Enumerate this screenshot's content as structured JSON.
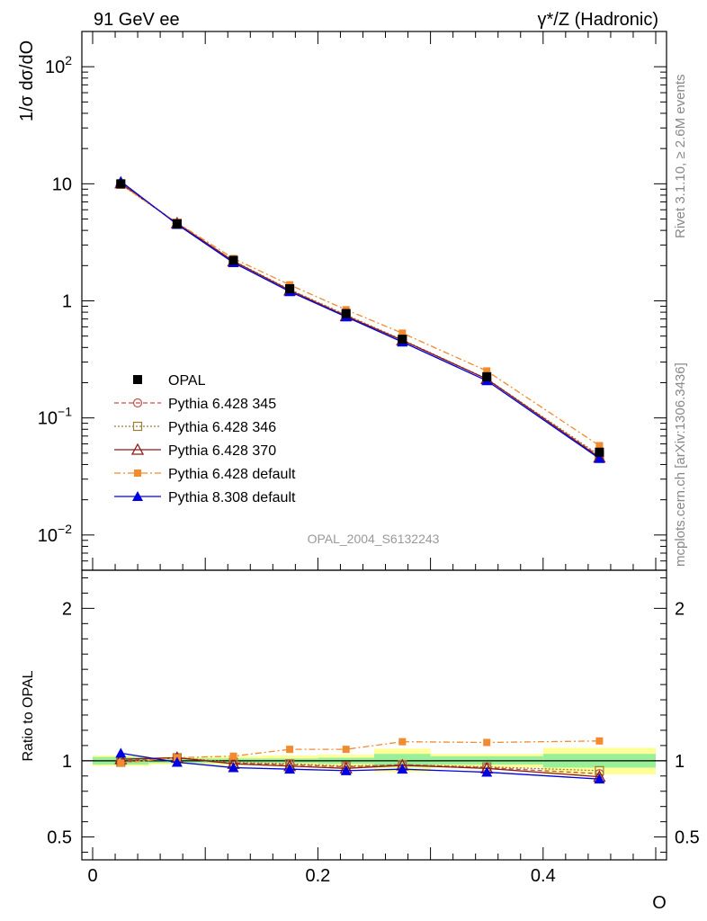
{
  "header": {
    "left": "91 GeV ee",
    "right": "γ*/Z (Hadronic)"
  },
  "side": {
    "rivet": "Rivet 3.1.10, ≥ 2.6M events",
    "mcplots": "mcplots.cern.ch [arXiv:1306.3436]"
  },
  "analysis_id": "OPAL_2004_S6132243",
  "chart_data": [
    {
      "type": "line",
      "panel": "main",
      "ylabel": "1/σ dσ/dO",
      "xlabel": "O",
      "yscale": "log",
      "xlim": [
        0,
        0.5
      ],
      "ylim": [
        0.005,
        200
      ],
      "yticks": [
        {
          "value": 0.01,
          "base": "10",
          "exp": "−2"
        },
        {
          "value": 0.1,
          "base": "10",
          "exp": "−1"
        },
        {
          "value": 1,
          "base": "1",
          "exp": ""
        },
        {
          "value": 10,
          "base": "10",
          "exp": ""
        },
        {
          "value": 100,
          "base": "10",
          "exp": "2"
        }
      ],
      "x": [
        0.025,
        0.075,
        0.125,
        0.175,
        0.225,
        0.275,
        0.35,
        0.45
      ],
      "series": [
        {
          "name": "OPAL",
          "color": "#000000",
          "marker": "square",
          "dash": "none",
          "values": [
            10.0,
            4.55,
            2.22,
            1.27,
            0.78,
            0.47,
            0.225,
            0.051
          ]
        },
        {
          "name": "Pythia 6.428 345",
          "color": "#c0504d",
          "marker": "circle-open",
          "dash": "dashed",
          "values": [
            10.0,
            4.6,
            2.18,
            1.24,
            0.75,
            0.46,
            0.215,
            0.047
          ]
        },
        {
          "name": "Pythia 6.428 346",
          "color": "#a0783c",
          "marker": "square-open",
          "dash": "dotted",
          "values": [
            9.9,
            4.6,
            2.2,
            1.25,
            0.76,
            0.465,
            0.216,
            0.048
          ]
        },
        {
          "name": "Pythia 6.428 370",
          "color": "#8b1a1a",
          "marker": "triangle-open",
          "dash": "solid",
          "values": [
            10.1,
            4.6,
            2.18,
            1.23,
            0.74,
            0.46,
            0.215,
            0.046
          ]
        },
        {
          "name": "Pythia 6.428 default",
          "color": "#f28a30",
          "marker": "square-filled",
          "dash": "dashdot",
          "values": [
            9.85,
            4.65,
            2.3,
            1.37,
            0.84,
            0.53,
            0.252,
            0.058
          ]
        },
        {
          "name": "Pythia 8.308 default",
          "color": "#0000e0",
          "marker": "triangle-filled",
          "dash": "solid",
          "values": [
            10.5,
            4.5,
            2.12,
            1.2,
            0.73,
            0.445,
            0.208,
            0.045
          ]
        }
      ]
    },
    {
      "type": "line",
      "panel": "ratio",
      "ylabel": "Ratio to OPAL",
      "xlabel": "O",
      "xlim": [
        0,
        0.5
      ],
      "ylim": [
        0.35,
        2.25
      ],
      "yticks": [
        0.5,
        1,
        2
      ],
      "ytick_labels": [
        "0.5",
        "1",
        "2"
      ],
      "xticks": [
        0,
        0.2,
        0.4
      ],
      "xtick_labels": [
        "0",
        "0.2",
        "0.4"
      ],
      "bins": [
        [
          0,
          0.05
        ],
        [
          0.05,
          0.1
        ],
        [
          0.1,
          0.15
        ],
        [
          0.15,
          0.2
        ],
        [
          0.2,
          0.25
        ],
        [
          0.25,
          0.3
        ],
        [
          0.3,
          0.4
        ],
        [
          0.4,
          0.5
        ]
      ],
      "band_green": [
        [
          0.975,
          1.025
        ],
        [
          0.985,
          1.015
        ],
        [
          0.985,
          1.015
        ],
        [
          0.985,
          1.015
        ],
        [
          0.98,
          1.02
        ],
        [
          0.96,
          1.045
        ],
        [
          0.975,
          1.03
        ],
        [
          0.955,
          1.045
        ]
      ],
      "band_yellow": [
        [
          0.965,
          1.035
        ],
        [
          0.975,
          1.025
        ],
        [
          0.97,
          1.03
        ],
        [
          0.965,
          1.035
        ],
        [
          0.96,
          1.04
        ],
        [
          0.925,
          1.08
        ],
        [
          0.955,
          1.045
        ],
        [
          0.91,
          1.085
        ]
      ],
      "x": [
        0.025,
        0.075,
        0.125,
        0.175,
        0.225,
        0.275,
        0.35,
        0.45
      ],
      "series": [
        {
          "name": "Pythia 6.428 345",
          "values": [
            1.0,
            1.02,
            0.985,
            0.975,
            0.96,
            0.975,
            0.955,
            0.915
          ]
        },
        {
          "name": "Pythia 6.428 346",
          "values": [
            0.99,
            1.02,
            0.99,
            0.98,
            0.965,
            0.975,
            0.96,
            0.935
          ]
        },
        {
          "name": "Pythia 6.428 370",
          "values": [
            1.01,
            1.02,
            0.98,
            0.965,
            0.95,
            0.97,
            0.95,
            0.895
          ]
        },
        {
          "name": "Pythia 6.428 default",
          "values": [
            0.985,
            1.02,
            1.03,
            1.075,
            1.075,
            1.125,
            1.12,
            1.13
          ]
        },
        {
          "name": "Pythia 8.308 default",
          "values": [
            1.05,
            0.99,
            0.955,
            0.945,
            0.935,
            0.945,
            0.925,
            0.88
          ]
        }
      ]
    }
  ]
}
